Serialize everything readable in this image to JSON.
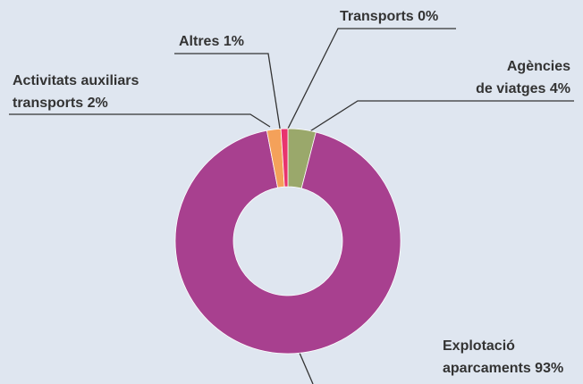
{
  "chart_data": {
    "type": "donut",
    "categories": [
      "Transports",
      "Agències de viatges",
      "Explotació aparcaments",
      "Activitats auxiliars transports",
      "Altres"
    ],
    "values": [
      0,
      4,
      93,
      2,
      1
    ],
    "value_labels": [
      "0%",
      "4%",
      "93%",
      "2%",
      "1%"
    ],
    "colors": [
      "#f2e200",
      "#9aa86b",
      "#a8408f",
      "#f4a15a",
      "#e8336e"
    ]
  }
}
